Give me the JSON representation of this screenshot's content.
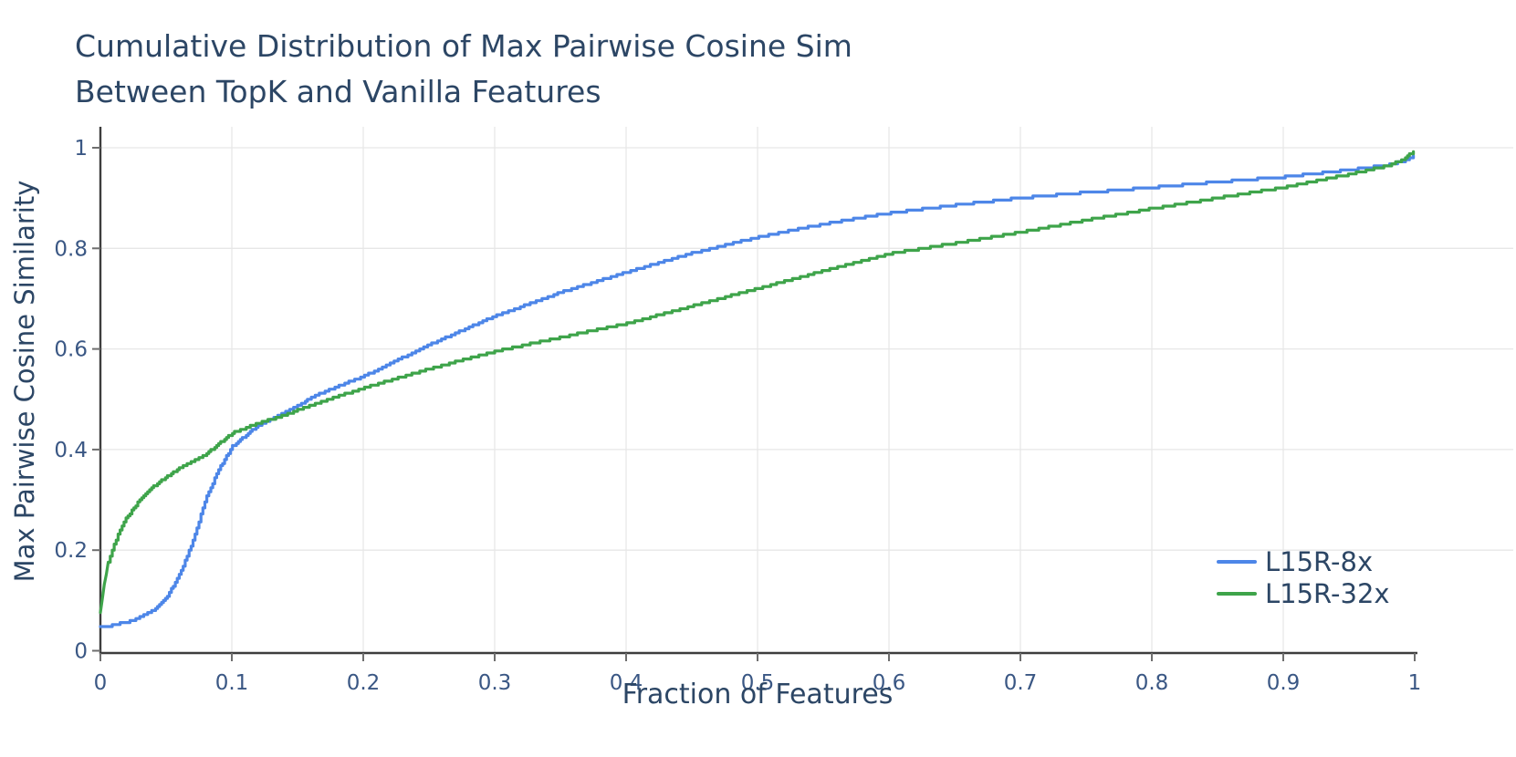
{
  "title": {
    "line1": "Cumulative Distribution of Max Pairwise Cosine Sim",
    "line2": "Between TopK and Vanilla Features"
  },
  "x_axis": {
    "label": "Fraction of Features",
    "tick_labels": [
      "0",
      "0.1",
      "0.2",
      "0.3",
      "0.4",
      "0.5",
      "0.6",
      "0.7",
      "0.8",
      "0.9",
      "1"
    ],
    "tick_values": [
      0,
      0.1,
      0.2,
      0.3,
      0.4,
      0.5,
      0.6,
      0.7,
      0.8,
      0.9,
      1
    ]
  },
  "y_axis": {
    "label": "Max Pairwise Cosine Similarity",
    "tick_labels": [
      "0",
      "0.2",
      "0.4",
      "0.6",
      "0.8",
      "1"
    ],
    "tick_values": [
      0,
      0.2,
      0.4,
      0.6,
      0.8,
      1
    ]
  },
  "colors": {
    "title_text": "#2c4665",
    "tick_text": "#3a5784",
    "axis_spine": "#3d3d3d",
    "tick_mark": "#6e6e6e",
    "gridline": "#e7e7e7",
    "series_blue": "#4d86e8",
    "series_green": "#3ea44a"
  },
  "chart_data": {
    "type": "line",
    "subtype": "ecdf-step",
    "title": "Cumulative Distribution of Max Pairwise Cosine Sim Between TopK and Vanilla Features",
    "xlabel": "Fraction of Features",
    "ylabel": "Max Pairwise Cosine Similarity",
    "xlim": [
      0,
      1
    ],
    "ylim": [
      0,
      1
    ],
    "grid": true,
    "legend_position": "bottom-right",
    "series": [
      {
        "name": "L15R-8x",
        "color": "#4d86e8",
        "points": [
          [
            0,
            0.047
          ],
          [
            0.01,
            0.051
          ],
          [
            0.02,
            0.057
          ],
          [
            0.03,
            0.066
          ],
          [
            0.04,
            0.08
          ],
          [
            0.05,
            0.105
          ],
          [
            0.06,
            0.15
          ],
          [
            0.07,
            0.215
          ],
          [
            0.08,
            0.3
          ],
          [
            0.09,
            0.36
          ],
          [
            0.1,
            0.405
          ],
          [
            0.12,
            0.448
          ],
          [
            0.14,
            0.474
          ],
          [
            0.15,
            0.486
          ],
          [
            0.16,
            0.503
          ],
          [
            0.18,
            0.525
          ],
          [
            0.2,
            0.545
          ],
          [
            0.25,
            0.608
          ],
          [
            0.3,
            0.665
          ],
          [
            0.35,
            0.712
          ],
          [
            0.4,
            0.752
          ],
          [
            0.45,
            0.79
          ],
          [
            0.5,
            0.822
          ],
          [
            0.55,
            0.848
          ],
          [
            0.6,
            0.87
          ],
          [
            0.65,
            0.886
          ],
          [
            0.7,
            0.9
          ],
          [
            0.75,
            0.911
          ],
          [
            0.8,
            0.921
          ],
          [
            0.85,
            0.932
          ],
          [
            0.9,
            0.942
          ],
          [
            0.95,
            0.956
          ],
          [
            0.98,
            0.966
          ],
          [
            0.99,
            0.972
          ],
          [
            1.0,
            0.985
          ]
        ]
      },
      {
        "name": "L15R-32x",
        "color": "#3ea44a",
        "points": [
          [
            0,
            0.075
          ],
          [
            0.003,
            0.13
          ],
          [
            0.006,
            0.175
          ],
          [
            0.01,
            0.21
          ],
          [
            0.015,
            0.24
          ],
          [
            0.02,
            0.265
          ],
          [
            0.03,
            0.3
          ],
          [
            0.04,
            0.325
          ],
          [
            0.05,
            0.345
          ],
          [
            0.06,
            0.362
          ],
          [
            0.08,
            0.39
          ],
          [
            0.1,
            0.432
          ],
          [
            0.12,
            0.452
          ],
          [
            0.14,
            0.468
          ],
          [
            0.15,
            0.478
          ],
          [
            0.16,
            0.488
          ],
          [
            0.18,
            0.505
          ],
          [
            0.2,
            0.522
          ],
          [
            0.25,
            0.56
          ],
          [
            0.3,
            0.595
          ],
          [
            0.35,
            0.623
          ],
          [
            0.4,
            0.65
          ],
          [
            0.45,
            0.685
          ],
          [
            0.5,
            0.72
          ],
          [
            0.55,
            0.755
          ],
          [
            0.6,
            0.789
          ],
          [
            0.65,
            0.81
          ],
          [
            0.7,
            0.832
          ],
          [
            0.75,
            0.856
          ],
          [
            0.8,
            0.879
          ],
          [
            0.85,
            0.9
          ],
          [
            0.9,
            0.921
          ],
          [
            0.95,
            0.947
          ],
          [
            0.98,
            0.965
          ],
          [
            0.99,
            0.975
          ],
          [
            1.0,
            0.995
          ]
        ]
      }
    ]
  }
}
